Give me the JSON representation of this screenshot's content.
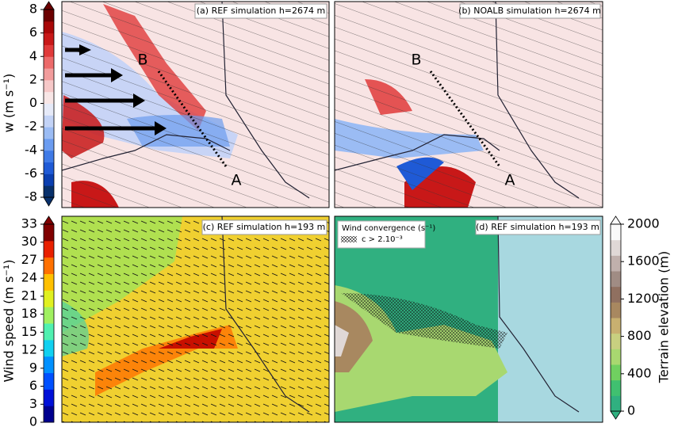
{
  "colorbars": [
    {
      "label": "w (m s⁻¹)",
      "lim": [
        -8,
        8
      ],
      "ticks": [
        8,
        6,
        4,
        2,
        0,
        -2,
        -4,
        -6,
        -8
      ],
      "colors": [
        "#08306b",
        "#0b3fb0",
        "#1f5ad6",
        "#3f7ae6",
        "#6b9cf0",
        "#9bbcf4",
        "#c3d3f6",
        "#e6eaf8",
        "#f8e6e6",
        "#f6c8c8",
        "#f29c9c",
        "#ec6a6a",
        "#e03a3a",
        "#c81818",
        "#a80808",
        "#6b0000"
      ]
    },
    {
      "label": "Wind speed (m s⁻¹)",
      "lim": [
        0,
        33
      ],
      "ticks": [
        0,
        3,
        6,
        9,
        12,
        15,
        18,
        21,
        24,
        27,
        30,
        33
      ],
      "colors": [
        "#00008f",
        "#0010d8",
        "#0050ff",
        "#0090ff",
        "#10d0f0",
        "#50f0b0",
        "#a0f060",
        "#e0f020",
        "#ffc000",
        "#ff7000",
        "#e82000",
        "#800000"
      ]
    },
    {
      "label": "Terrain elevation (m)",
      "lim": [
        0,
        2000
      ],
      "ticks": [
        0,
        400,
        800,
        1200,
        1600,
        2000
      ],
      "colors": [
        "#30b080",
        "#40c070",
        "#70d060",
        "#a8d870",
        "#c8d080",
        "#c8b070",
        "#a88860",
        "#907060",
        "#a08c84",
        "#c0b0ac",
        "#e0d8d6",
        "#fafafa"
      ]
    }
  ],
  "panels": [
    {
      "title": "(a) REF simulation h=2674 m",
      "annotations": [
        "A",
        "B"
      ]
    },
    {
      "title": "(b) NOALB simulation h=2674 m",
      "annotations": [
        "A",
        "B"
      ]
    },
    {
      "title": "(c) REF simulation h=193 m"
    },
    {
      "title": "(d) REF simulation h=193 m",
      "legend": {
        "title": "Wind convergence (s⁻¹)",
        "entry": "c > 2.10⁻³"
      }
    }
  ]
}
